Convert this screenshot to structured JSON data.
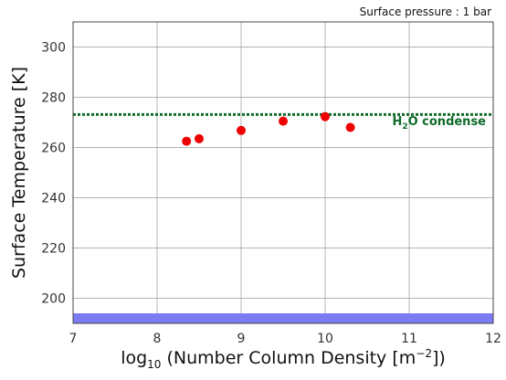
{
  "chart_data": {
    "type": "scatter",
    "note": "Surface pressure : 1 bar",
    "xlabel_prefix": "log",
    "xlabel_sub": "10",
    "xlabel_main": " (Number Column Density [m",
    "xlabel_sup": "−2",
    "xlabel_end": "])",
    "ylabel": "Surface Temperature [K]",
    "xlim": [
      7,
      12
    ],
    "ylim": [
      190,
      310
    ],
    "x_ticks": [
      7,
      8,
      9,
      10,
      11,
      12
    ],
    "x_tick_labels": [
      "7",
      "8",
      "9",
      "10",
      "11",
      "12"
    ],
    "y_ticks": [
      200,
      220,
      240,
      260,
      280,
      300
    ],
    "y_tick_labels": [
      "200",
      "220",
      "240",
      "260",
      "280",
      "300"
    ],
    "grid": true,
    "series": [
      {
        "color": "#ee0000",
        "points": [
          {
            "x": 8.35,
            "y": 262.5
          },
          {
            "x": 8.5,
            "y": 263.5
          },
          {
            "x": 9.0,
            "y": 266.8
          },
          {
            "x": 9.5,
            "y": 270.5
          },
          {
            "x": 10.0,
            "y": 272.3
          },
          {
            "x": 10.3,
            "y": 268.0
          }
        ]
      }
    ],
    "reference_line": {
      "y": 273.15,
      "color": "#0f6b2a",
      "label_main": "H",
      "label_sub": "2",
      "label_end": "O condense"
    },
    "band": {
      "y_from": 190,
      "y_to": 194,
      "color": "#7b7bf5"
    }
  }
}
